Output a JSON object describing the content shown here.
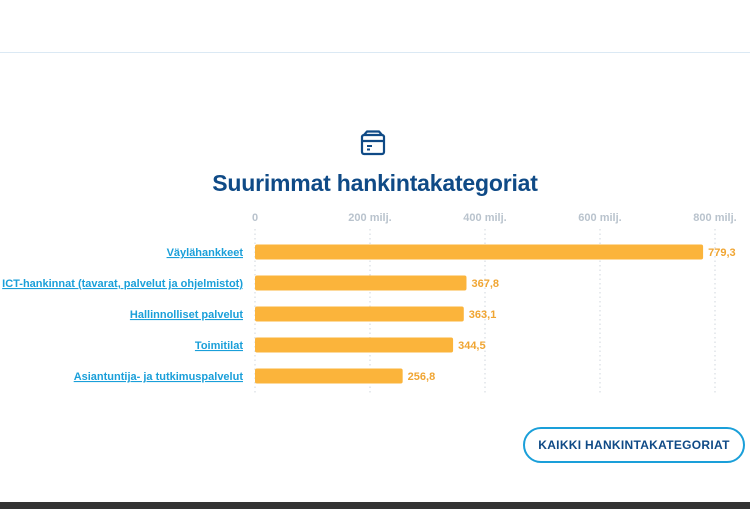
{
  "section": {
    "title": "Suurimmat hankintakategoriat",
    "icon": "box-icon",
    "button_label": "KAIKKI HANKINTAKATEGORIAT"
  },
  "colors": {
    "bar": "#fbb43b",
    "title": "#0f4a86",
    "link": "#1a9fd9",
    "tick": "#b9c3cd",
    "value": "#f0a532"
  },
  "chart_data": {
    "type": "bar",
    "orientation": "horizontal",
    "title": "Suurimmat hankintakategoriat",
    "categories": [
      "Väylähankkeet",
      "ICT-hankinnat (tavarat, palvelut ja ohjelmistot)",
      "Hallinnolliset palvelut",
      "Toimitilat",
      "Asiantuntija- ja tutkimuspalvelut"
    ],
    "values": [
      779.3,
      367.8,
      363.1,
      344.5,
      256.8
    ],
    "value_labels": [
      "779,3",
      "367,8",
      "363,1",
      "344,5",
      "256,8"
    ],
    "xticks": [
      0,
      200,
      400,
      600,
      800
    ],
    "xtick_labels": [
      "0",
      "200 milj.",
      "400 milj.",
      "600 milj.",
      "800 milj."
    ],
    "xlim": [
      0,
      800
    ],
    "grid": true,
    "legend": false
  }
}
